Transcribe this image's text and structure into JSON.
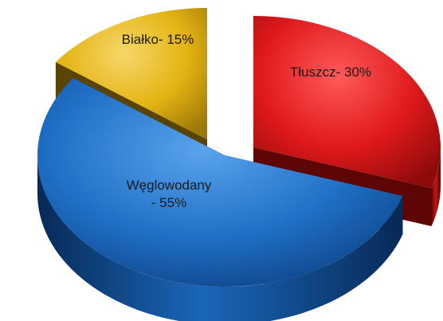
{
  "chart_data": {
    "type": "pie",
    "style": "3d-exploded",
    "slices": [
      {
        "label_lines": [
          "Tłuszcz- 30%"
        ],
        "value": 30,
        "color": "#e0191c",
        "gradient": [
          "#ff5a5a",
          "#e0191c",
          "#8e0a0a"
        ],
        "side": [
          "#c51414",
          "#5e0505"
        ]
      },
      {
        "label_lines": [
          "Węglowodany",
          "- 55%"
        ],
        "value": 55,
        "color": "#1f70c7",
        "gradient": [
          "#5aa3ec",
          "#1f70c7",
          "#0d3f80"
        ],
        "side": [
          "#1b66b8",
          "#072a58"
        ]
      },
      {
        "label_lines": [
          "Białko- 15%"
        ],
        "value": 15,
        "color": "#e5b414",
        "gradient": [
          "#f5d76a",
          "#e5b414",
          "#9d7906"
        ],
        "side": [
          "#b99010",
          "#5a4403"
        ]
      }
    ]
  }
}
